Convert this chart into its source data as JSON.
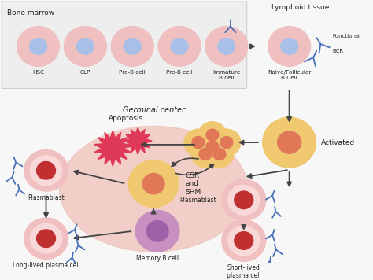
{
  "background_color": "#f7f7f7",
  "top_section_bg": "#ececec",
  "germinal_ellipse_color": "#f0c8c0",
  "cell_outer_color": "#f0c0c0",
  "cell_inner_color": "#a8c0e8",
  "activated_outer": "#f0c870",
  "activated_inner": "#e07858",
  "plasma_outer": "#f0c0c0",
  "plasma_inner": "#c03030",
  "memory_outer": "#c890c0",
  "memory_inner": "#a060a8",
  "burst_color": "#e03858",
  "antibody_color": "#4870b8",
  "arrow_color": "#444444",
  "text_color": "#222222",
  "bone_marrow_label": "Bone marrow",
  "lymphoid_label": "Lymphoid tissue",
  "functional_label": "Functional",
  "bcr_label": "BCR",
  "naive_label": "Naive/Follicular\nB Cell",
  "activated_label": "Activated",
  "germinal_label": "Germinal center",
  "apoptosis_label": "Apoptosis",
  "csr_shm_label": "CSR\nand\nSHM",
  "plasmablast_left_label": "Plasmablast",
  "long_lived_label": "Long-lived plasma cell",
  "memory_label": "Memory B cell",
  "plasmablast_right_label": "Plasmablast",
  "short_lived_label": "Short-lived\nplasma cell",
  "cell_labels": [
    "HSC",
    "CLP",
    "Pro-B cell",
    "Pre-B cell",
    "Immature\nB cell"
  ]
}
